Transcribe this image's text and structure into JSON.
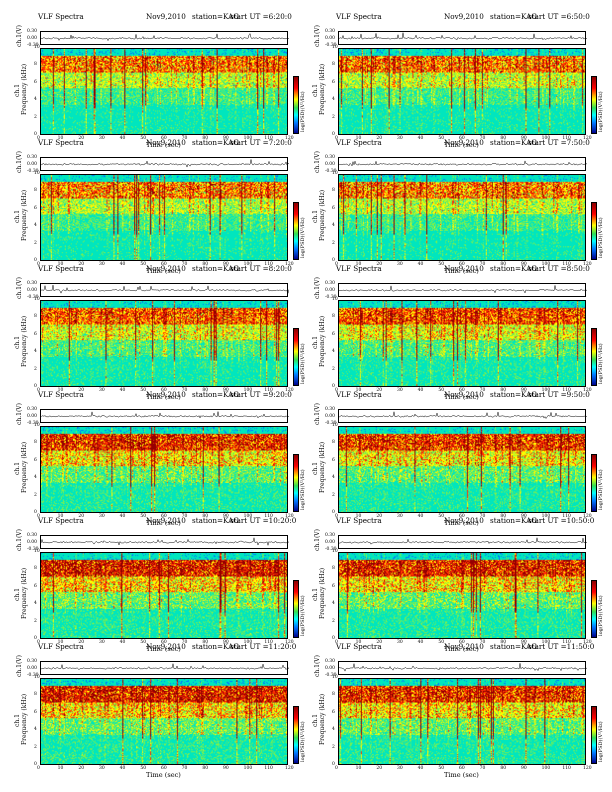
{
  "chart_data": {
    "type": "heatmap",
    "common": {
      "title_left": "VLF Spectra",
      "date": "Nov9,2010",
      "station": "station=KAG",
      "xlabel": "Time (sec)",
      "trace_ylabel": "ch.1(V)",
      "spec_ylabel_top": "ch.1",
      "spec_ylabel": "Frequency (kHz)",
      "colorbar_label": "log(PSD)(V²/Hz)",
      "x_ticks": [
        "0",
        "10",
        "20",
        "30",
        "40",
        "50",
        "60",
        "70",
        "80",
        "90",
        "100",
        "110",
        "120"
      ],
      "xlim": [
        0,
        120
      ],
      "trace_yticks": [
        "0.30",
        "0.00",
        "-0.30"
      ],
      "trace_ylim": [
        -0.3,
        0.3
      ],
      "freq_ticks": [
        "0",
        "2",
        "4",
        "6",
        "8",
        "10"
      ],
      "freq_ylim": [
        0,
        10
      ],
      "colorbar_range": [
        -4,
        2
      ],
      "colors": {
        "low": "#00008b",
        "mid": "#00ffff",
        "yellow": "#ffff00",
        "high": "#ff0000",
        "dark": "#8b0000"
      }
    },
    "panels": [
      {
        "start": "start UT =6:20:0",
        "intensity": 0.9
      },
      {
        "start": "start UT =6:50:0",
        "intensity": 0.9
      },
      {
        "start": "start UT =7:20:0",
        "intensity": 0.85
      },
      {
        "start": "start UT =7:50:0",
        "intensity": 0.85
      },
      {
        "start": "start UT =8:20:0",
        "intensity": 1.0
      },
      {
        "start": "start UT =8:50:0",
        "intensity": 1.05
      },
      {
        "start": "start UT =9:20:0",
        "intensity": 1.2
      },
      {
        "start": "start UT =9:50:0",
        "intensity": 1.15
      },
      {
        "start": "start UT =10:20:0",
        "intensity": 1.3
      },
      {
        "start": "start UT =10:50:0",
        "intensity": 1.25
      },
      {
        "start": "start UT =11:20:0",
        "intensity": 1.3
      },
      {
        "start": "start UT =11:50:0",
        "intensity": 1.2
      }
    ]
  }
}
